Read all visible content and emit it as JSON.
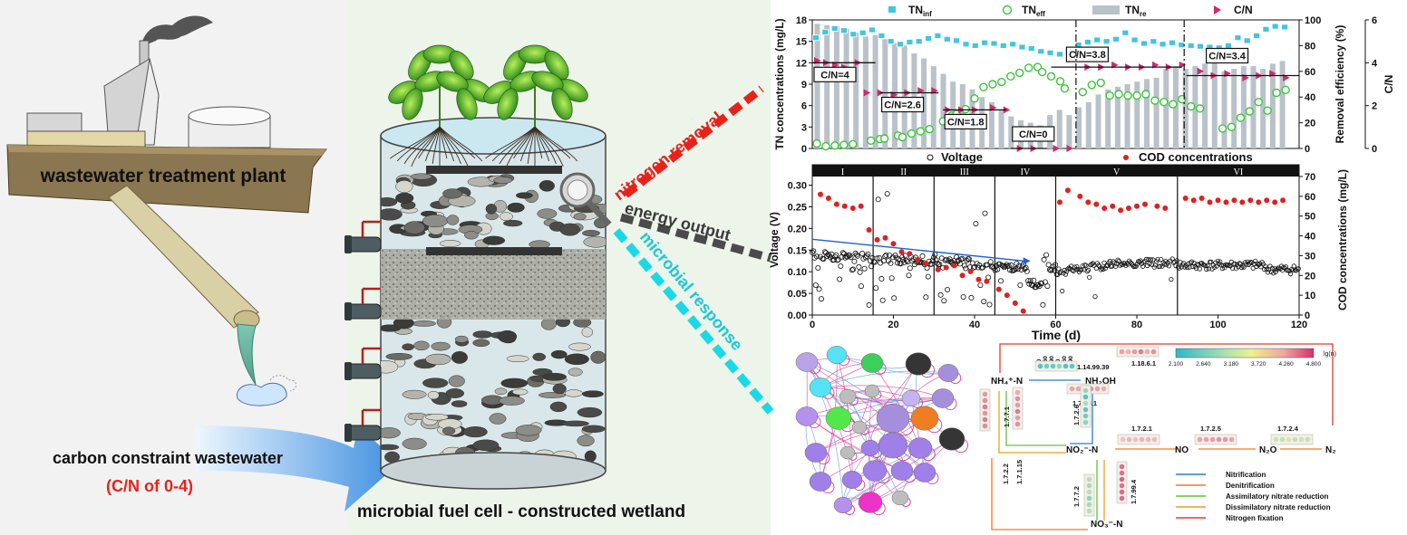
{
  "left": {
    "plant_label": "wastewater treatment plant",
    "wastewater_label": "carbon constraint wastewater",
    "cn_range_label": "(C/N of 0-4)",
    "system_label": "microbial fuel cell - constructed wetland"
  },
  "outputs": [
    {
      "label": "nitrogen removal",
      "color": "#e8221b"
    },
    {
      "label": "energy output",
      "color": "#4a4a4a"
    },
    {
      "label": "microbial response",
      "color": "#1ad9e6"
    }
  ],
  "colors": {
    "tn_inf": "#3fc6e0",
    "tn_eff": "#3cc43c",
    "tn_re": "#b9c2c9",
    "cn": "#d0296d",
    "cod": "#e02020",
    "voltage": "#111111"
  },
  "chart_data": [
    {
      "type": "bar",
      "title": "",
      "legend": [
        "TNinf",
        "TNeff",
        "TNre",
        "C/N"
      ],
      "legend_position": "top",
      "xlabel": "",
      "ylabel": "TN concentrations (mg/L)",
      "ylabel2": "Removal efficiency (%)",
      "ylabel3": "C/N",
      "ylim": [
        0,
        18
      ],
      "y2lim": [
        0,
        100
      ],
      "y3lim": [
        0,
        6
      ],
      "yticks": [
        0,
        3,
        6,
        9,
        12,
        15,
        18
      ],
      "y2ticks": [
        0,
        20,
        40,
        60,
        80,
        100
      ],
      "y3ticks": [
        0,
        2,
        4,
        6
      ],
      "stages": [
        "C/N=4",
        "C/N=2.6",
        "C/N=1.8",
        "C/N=0",
        "C/N=3.8",
        "C/N=3.4"
      ],
      "cn_levels": [
        4,
        2.6,
        1.8,
        0,
        3.8,
        3.4
      ],
      "tn_removal_pct": [
        97,
        96,
        95,
        93,
        90,
        87,
        88,
        85,
        82,
        80,
        74,
        70,
        64,
        58,
        52,
        50,
        46,
        40,
        36,
        30,
        25,
        22,
        20,
        18,
        26,
        30,
        26,
        32,
        36,
        42,
        46,
        48,
        50,
        52,
        54,
        55,
        62,
        64,
        62,
        64,
        66,
        68,
        60,
        62,
        64,
        64,
        62,
        66,
        68
      ],
      "tn_inf": [
        15.5,
        16.3,
        16.8,
        16.5,
        16.0,
        16.2,
        16.6,
        15.8,
        15.0,
        14.6,
        14.9,
        15.0,
        15.4,
        15.8,
        15.3,
        15.1,
        14.6,
        14.4,
        14.8,
        14.7,
        14.4,
        14.6,
        14.2,
        14.0,
        13.6,
        13.4,
        13.2,
        13.8,
        14.5,
        14.9,
        15.2,
        15.0,
        15.3,
        16.2,
        15.2,
        14.7,
        15.0,
        14.6,
        14.8,
        14.5,
        14.4,
        14.3,
        14.2,
        14.1,
        14.4,
        15.5,
        15.1,
        15.8,
        16.7,
        17.1,
        17.0
      ],
      "tn_eff": [
        0.7,
        0.3,
        0.4,
        0.5,
        0.6,
        1.1,
        1.3,
        1.4,
        1.8,
        1.6,
        2.1,
        2.4,
        2.7,
        3.8,
        4.6,
        4.8,
        5.5,
        7.0,
        8.6,
        9.0,
        9.3,
        10.1,
        10.6,
        11.3,
        11.4,
        10.7,
        10.1,
        9.4,
        8.4,
        7.9,
        8.9,
        9.2,
        7.4,
        7.6,
        7.4,
        7.4,
        7.6,
        6.7,
        6.5,
        6.2,
        6.9,
        5.9,
        5.6,
        2.8,
        3.0,
        4.3,
        5.2,
        6.5,
        5.3,
        7.8,
        8.2
      ],
      "tn_eff_x": [
        1,
        3,
        5,
        7,
        9,
        13,
        15,
        16,
        19,
        20,
        22,
        24,
        26,
        29,
        31,
        32,
        34,
        36,
        38,
        40,
        42,
        44,
        46,
        48,
        50,
        51,
        53,
        55,
        56,
        60,
        62,
        64,
        66,
        68,
        70,
        72,
        74,
        76,
        78,
        80,
        82,
        84,
        86,
        91,
        93,
        95,
        97,
        99,
        101,
        103,
        105
      ],
      "cn_points_x": [
        1,
        3,
        5,
        7,
        10,
        12,
        15,
        18,
        21,
        24,
        27,
        30,
        33,
        36,
        40,
        43,
        46,
        49,
        54,
        57,
        61,
        64,
        67,
        70,
        73,
        76,
        79,
        82,
        86,
        89,
        92,
        96,
        99,
        102,
        105
      ],
      "cn_points": [
        4.1,
        4.0,
        3.9,
        3.8,
        4.0,
        2.6,
        2.6,
        2.5,
        2.6,
        2.7,
        2.7,
        1.8,
        1.8,
        1.8,
        1.9,
        1.8,
        0,
        0,
        0,
        0,
        3.8,
        3.8,
        3.9,
        3.8,
        3.8,
        3.9,
        3.8,
        3.9,
        3.6,
        3.4,
        3.5,
        3.3,
        3.4,
        3.5,
        3.3
      ]
    },
    {
      "type": "scatter",
      "legend": [
        "Voltage",
        "COD concentrations"
      ],
      "legend_position": "top",
      "xlabel": "Time (d)",
      "ylabel": "Voltage (V)",
      "ylabel2": "COD concentrations (mg/L)",
      "xlim": [
        0,
        120
      ],
      "xticks": [
        0,
        20,
        40,
        60,
        80,
        100,
        120
      ],
      "ylim": [
        0,
        0.32
      ],
      "yticks": [
        0.0,
        0.05,
        0.1,
        0.15,
        0.2,
        0.25,
        0.3
      ],
      "y2lim": [
        0,
        70
      ],
      "y2ticks": [
        0,
        10,
        20,
        30,
        40,
        50,
        60,
        70
      ],
      "phases": [
        "I",
        "II",
        "III",
        "IV",
        "V",
        "VI"
      ],
      "phase_bounds": [
        0,
        15,
        30,
        45,
        60,
        90,
        120
      ],
      "cod_x": [
        2,
        4,
        6,
        8,
        10,
        12,
        14,
        16,
        18,
        20,
        22,
        24,
        26,
        28,
        31,
        33,
        35,
        37,
        39,
        41,
        43,
        46,
        48,
        50,
        52,
        61,
        63,
        66,
        68,
        70,
        72,
        74,
        76,
        78,
        80,
        82,
        85,
        87,
        92,
        94,
        96,
        98,
        100,
        102,
        104,
        106,
        108,
        110,
        112,
        114,
        116
      ],
      "cod": [
        61,
        59,
        56,
        55,
        54,
        55,
        43,
        38,
        39,
        36,
        32,
        31,
        28,
        26,
        23,
        24,
        25,
        20,
        22,
        18,
        17,
        13,
        10,
        6,
        2,
        57,
        63,
        60,
        57,
        56,
        54,
        55,
        53,
        54,
        55,
        56,
        55,
        54,
        59,
        58,
        59,
        57,
        58,
        57,
        58,
        57,
        58,
        57,
        58,
        57,
        58
      ],
      "voltage_trend": {
        "x": [
          0,
          52
        ],
        "y": [
          0.175,
          0.125
        ]
      }
    },
    {
      "type": "other",
      "title": "",
      "heatmap_scale_label": "lg(n)",
      "heatmap_scale_ticks": [
        "2.100",
        "2.640",
        "3.180",
        "3.720",
        "4.260",
        "4.800"
      ],
      "sample_labels": [
        "A0",
        "A60",
        "A90",
        "C0",
        "C60",
        "C90"
      ],
      "nodes": {
        "nh4": "NH₄⁺-N",
        "nh2oh": "NH₂OH",
        "no2": "NO₂⁻-N",
        "no": "NO",
        "n2o": "N₂O",
        "n2": "N₂",
        "no3": "NO₃⁻-N"
      },
      "enzymes": [
        "1.14.99.39",
        "1.18.6.1",
        "1.7.99.1",
        "1.7.7.1",
        "1.7.2.6",
        "1.7.2.1",
        "1.7.2.5",
        "1.7.2.4",
        "1.7.2.2",
        "1.7.1.15",
        "1.7.7.2",
        "1.7.99.4"
      ],
      "pathways": [
        {
          "name": "Nitrification",
          "color": "#2a78d8"
        },
        {
          "name": "Denitrification",
          "color": "#ef7b22"
        },
        {
          "name": "Assimilatory nitrate reduction",
          "color": "#63c434"
        },
        {
          "name": "Dissimilatory nitrate reduction",
          "color": "#e8a020"
        },
        {
          "name": "Nitrogen fixation",
          "color": "#e23a2a"
        }
      ]
    }
  ]
}
